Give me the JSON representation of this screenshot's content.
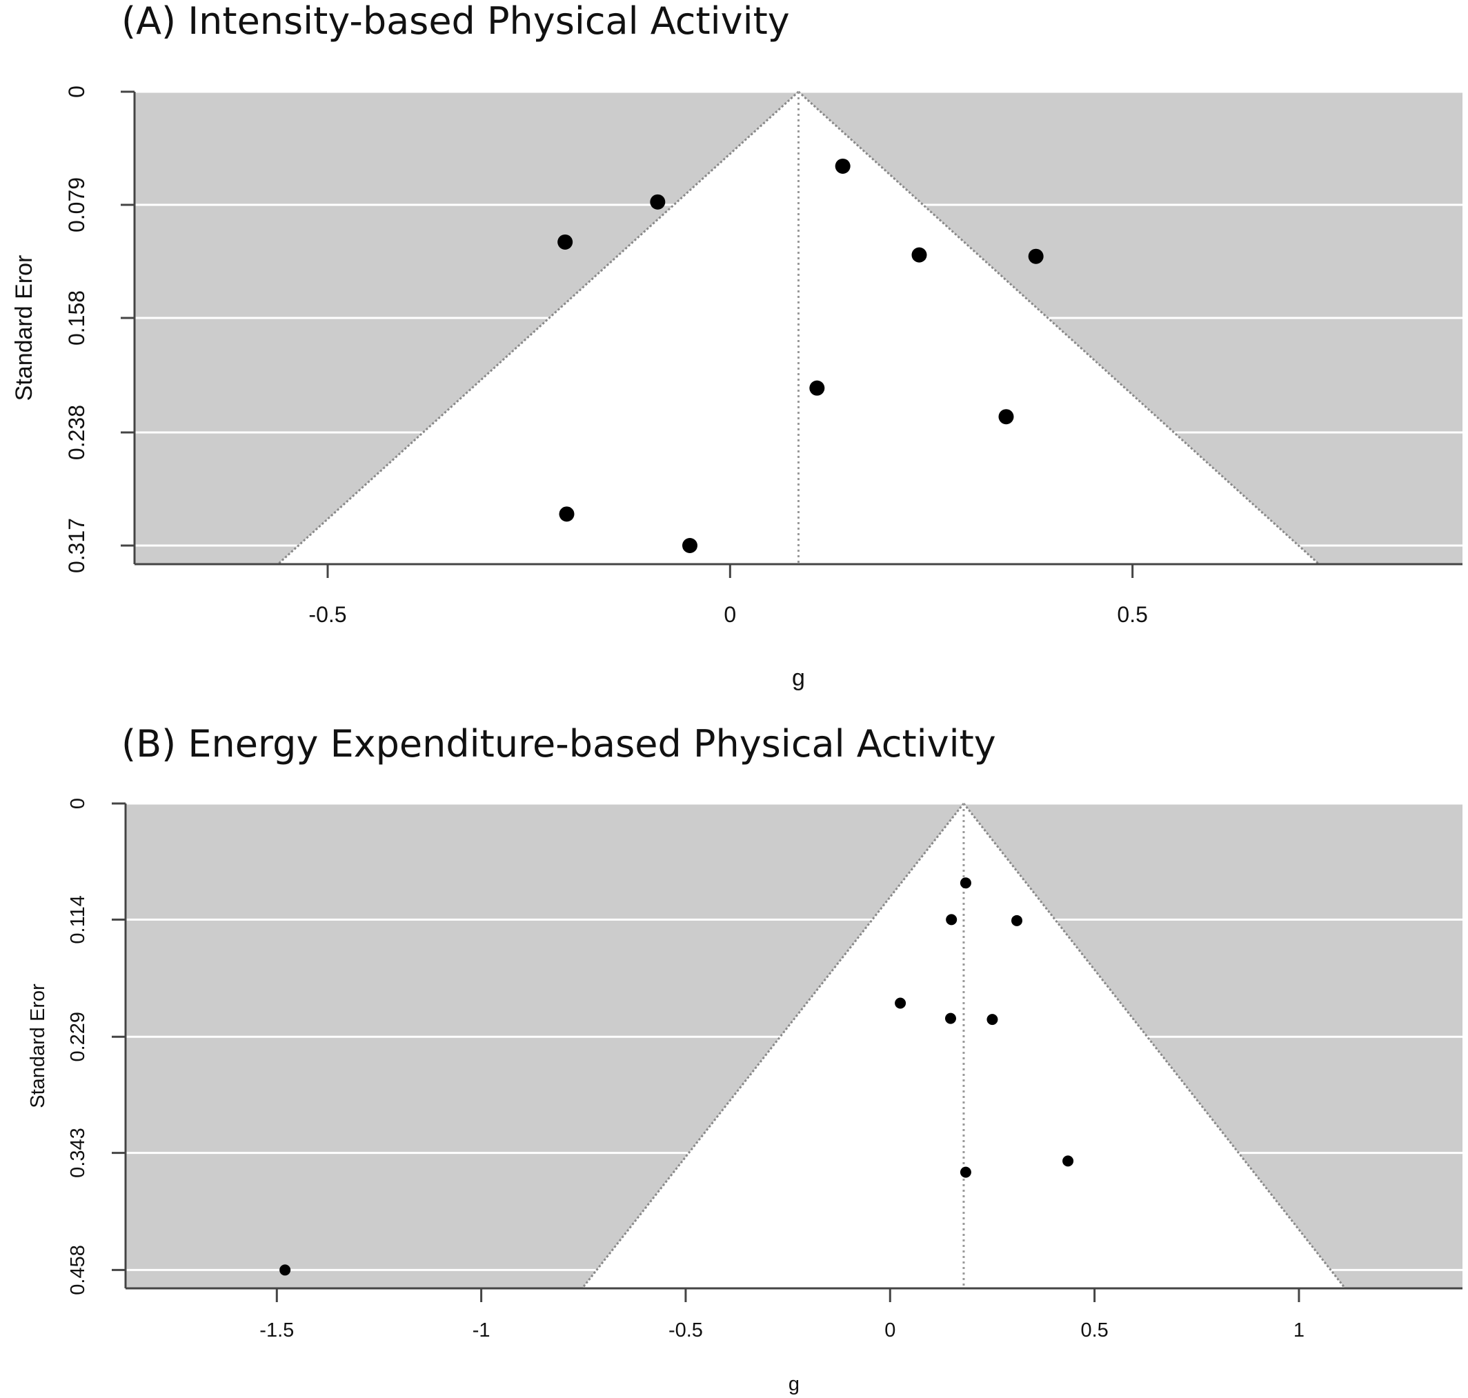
{
  "chart_data": [
    {
      "type": "scatter",
      "subtype": "funnel",
      "title": "(A) Intensity-based Physical Activity",
      "xlabel": "g",
      "ylabel": "Standard Eror",
      "xlim": [
        -0.74,
        0.91
      ],
      "ylim": [
        0.33,
        0
      ],
      "y_reversed": true,
      "xticks": [
        -0.5,
        0,
        0.5
      ],
      "xtick_labels": [
        "-0.5",
        "0",
        "0.5"
      ],
      "yticks": [
        0,
        0.079,
        0.158,
        0.238,
        0.317
      ],
      "ytick_labels": [
        "0",
        "0.079",
        "0.158",
        "0.238",
        "0.317"
      ],
      "grid": "horizontal",
      "summary_effect": 0.085,
      "funnel_halfwidth_per_se": 1.96,
      "background_color": "#cccccc",
      "funnel_color": "#ffffff",
      "point_color": "#000000",
      "points": [
        {
          "x": 0.14,
          "y": 0.052
        },
        {
          "x": -0.09,
          "y": 0.077
        },
        {
          "x": -0.205,
          "y": 0.105
        },
        {
          "x": 0.235,
          "y": 0.114
        },
        {
          "x": 0.38,
          "y": 0.115
        },
        {
          "x": 0.108,
          "y": 0.207
        },
        {
          "x": 0.343,
          "y": 0.227
        },
        {
          "x": -0.203,
          "y": 0.295
        },
        {
          "x": -0.05,
          "y": 0.317
        }
      ]
    },
    {
      "type": "scatter",
      "subtype": "funnel",
      "title": "(B) Energy Expenditure-based Physical Activity",
      "xlabel": "g",
      "ylabel": "Standard Eror",
      "xlim": [
        -1.87,
        1.4
      ],
      "ylim": [
        0.476,
        0
      ],
      "y_reversed": true,
      "xticks": [
        -1.5,
        -1,
        -0.5,
        0,
        0.5,
        1
      ],
      "xtick_labels": [
        "-1.5",
        "-1",
        "-0.5",
        "0",
        "0.5",
        "1"
      ],
      "yticks": [
        0,
        0.114,
        0.229,
        0.343,
        0.458
      ],
      "ytick_labels": [
        "0",
        "0.114",
        "0.229",
        "0.343",
        "0.458"
      ],
      "grid": "horizontal",
      "summary_effect": 0.18,
      "funnel_halfwidth_per_se": 1.96,
      "background_color": "#cccccc",
      "funnel_color": "#ffffff",
      "point_color": "#000000",
      "points": [
        {
          "x": 0.185,
          "y": 0.078
        },
        {
          "x": 0.15,
          "y": 0.114
        },
        {
          "x": 0.31,
          "y": 0.115
        },
        {
          "x": 0.025,
          "y": 0.196
        },
        {
          "x": 0.148,
          "y": 0.211
        },
        {
          "x": 0.25,
          "y": 0.212
        },
        {
          "x": 0.435,
          "y": 0.351
        },
        {
          "x": 0.185,
          "y": 0.362
        },
        {
          "x": -1.48,
          "y": 0.458
        }
      ]
    }
  ]
}
